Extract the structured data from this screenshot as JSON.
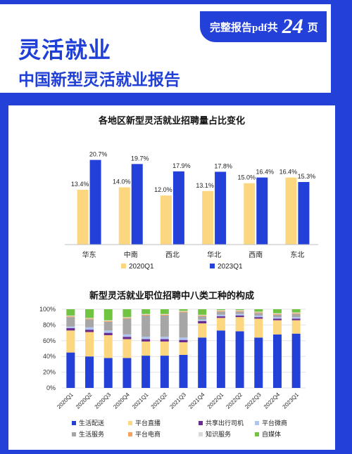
{
  "header": {
    "title": "灵活就业",
    "subtitle": "中国新型灵活就业报告",
    "badge": {
      "prefix": "完整报告pdf共",
      "number": "24",
      "suffix": "页"
    }
  },
  "colors": {
    "blue": "#2340d8",
    "yellow": "#fcd77f"
  },
  "chart_data": [
    {
      "type": "bar",
      "title": "各地区新型灵活就业招聘量占比变化",
      "categories": [
        "华东",
        "中南",
        "西北",
        "华北",
        "西南",
        "东北"
      ],
      "series": [
        {
          "name": "2020Q1",
          "values": [
            13.4,
            14.0,
            12.0,
            13.1,
            15.0,
            16.4
          ],
          "labels": [
            "13.4%",
            "14.0%",
            "12.0%",
            "13.1%",
            "15.0%",
            "16.4%"
          ],
          "color": "#fcd77f"
        },
        {
          "name": "2023Q1",
          "values": [
            20.7,
            19.7,
            17.9,
            17.8,
            16.4,
            15.3
          ],
          "labels": [
            "20.7%",
            "19.7%",
            "17.9%",
            "17.8%",
            "16.4%",
            "15.3%"
          ],
          "color": "#2340d8"
        }
      ],
      "ylim": [
        0,
        22
      ],
      "legend": "bottom"
    },
    {
      "type": "bar",
      "stacked": true,
      "title": "新型灵活就业职位招聘中八类工种的构成",
      "categories": [
        "2020Q1",
        "2020Q2",
        "2020Q3",
        "2020Q4",
        "2021Q1",
        "2021Q2",
        "2021Q3",
        "2021Q4",
        "2022Q1",
        "2022Q2",
        "2022Q3",
        "2022Q4",
        "2023Q1"
      ],
      "yticks": [
        "0%",
        "20%",
        "40%",
        "60%",
        "80%",
        "100%"
      ],
      "ylim": [
        0,
        100
      ],
      "grid": true,
      "legend": "bottom",
      "series": [
        {
          "name": "生活配送",
          "color": "#2340d8",
          "values": [
            45,
            40,
            38,
            38,
            41,
            41,
            42,
            64,
            73,
            72,
            64,
            68,
            69
          ]
        },
        {
          "name": "平台直播",
          "color": "#fcd77f",
          "values": [
            28,
            31,
            29,
            24,
            18,
            18,
            16,
            18,
            16,
            18,
            24,
            18,
            17
          ]
        },
        {
          "name": "共享出行司机",
          "color": "#6a2c91",
          "values": [
            3,
            3,
            3,
            3,
            3,
            3,
            3,
            3,
            2,
            2,
            2,
            2,
            2
          ]
        },
        {
          "name": "平台微商",
          "color": "#aec6f0",
          "values": [
            2,
            3,
            3,
            3,
            3,
            3,
            3,
            2,
            2,
            2,
            2,
            2,
            2
          ]
        },
        {
          "name": "生活服务",
          "color": "#a6a6a6",
          "values": [
            12,
            10,
            11,
            20,
            27,
            27,
            32,
            4,
            4,
            3,
            3,
            3,
            4
          ]
        },
        {
          "name": "平台电商",
          "color": "#f4a25c",
          "values": [
            1,
            1,
            1,
            1,
            1,
            1,
            1,
            1,
            1,
            1,
            1,
            1,
            1
          ]
        },
        {
          "name": "知识服务",
          "color": "#d9d9d9",
          "values": [
            1,
            1,
            1,
            1,
            1,
            1,
            1,
            1,
            1,
            1,
            1,
            1,
            1
          ]
        },
        {
          "name": "自媒体",
          "color": "#70c441",
          "values": [
            8,
            11,
            14,
            10,
            6,
            6,
            2,
            7,
            1,
            1,
            3,
            5,
            4
          ]
        }
      ]
    }
  ]
}
